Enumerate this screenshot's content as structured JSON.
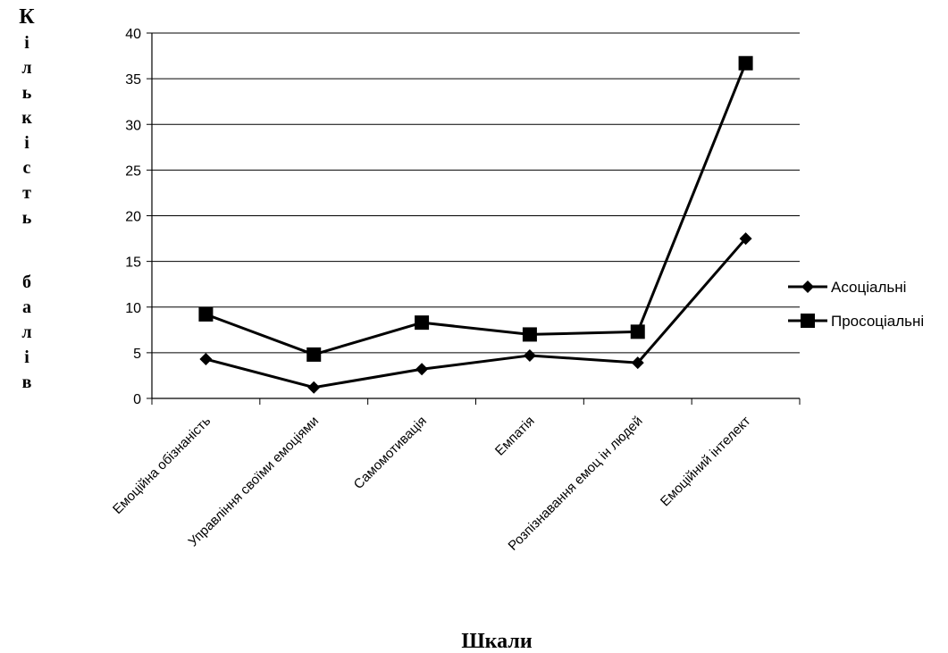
{
  "chart_data": {
    "type": "line",
    "title": "",
    "xlabel": "Шкали",
    "ylabel": "Кількість балів",
    "ylim": [
      0,
      40
    ],
    "y_ticks": [
      "0",
      "5",
      "10",
      "15",
      "20",
      "25",
      "30",
      "35",
      "40"
    ],
    "grid": "horizontal",
    "legend_position": "right",
    "categories": [
      "Емоційна обізнаність",
      "Управління своїми емоціями",
      "Самомотивація",
      "Емпатія",
      "Розпізнавання емоц ін людей",
      "Емоційний інтелект"
    ],
    "series": [
      {
        "name": "Асоціальні",
        "marker": "diamond",
        "color": "#000000",
        "values": [
          4.3,
          1.2,
          3.2,
          4.7,
          3.9,
          17.5
        ]
      },
      {
        "name": "Просоціальні",
        "marker": "square",
        "color": "#000000",
        "values": [
          9.2,
          4.8,
          8.3,
          7.0,
          7.3,
          36.7
        ]
      }
    ]
  }
}
